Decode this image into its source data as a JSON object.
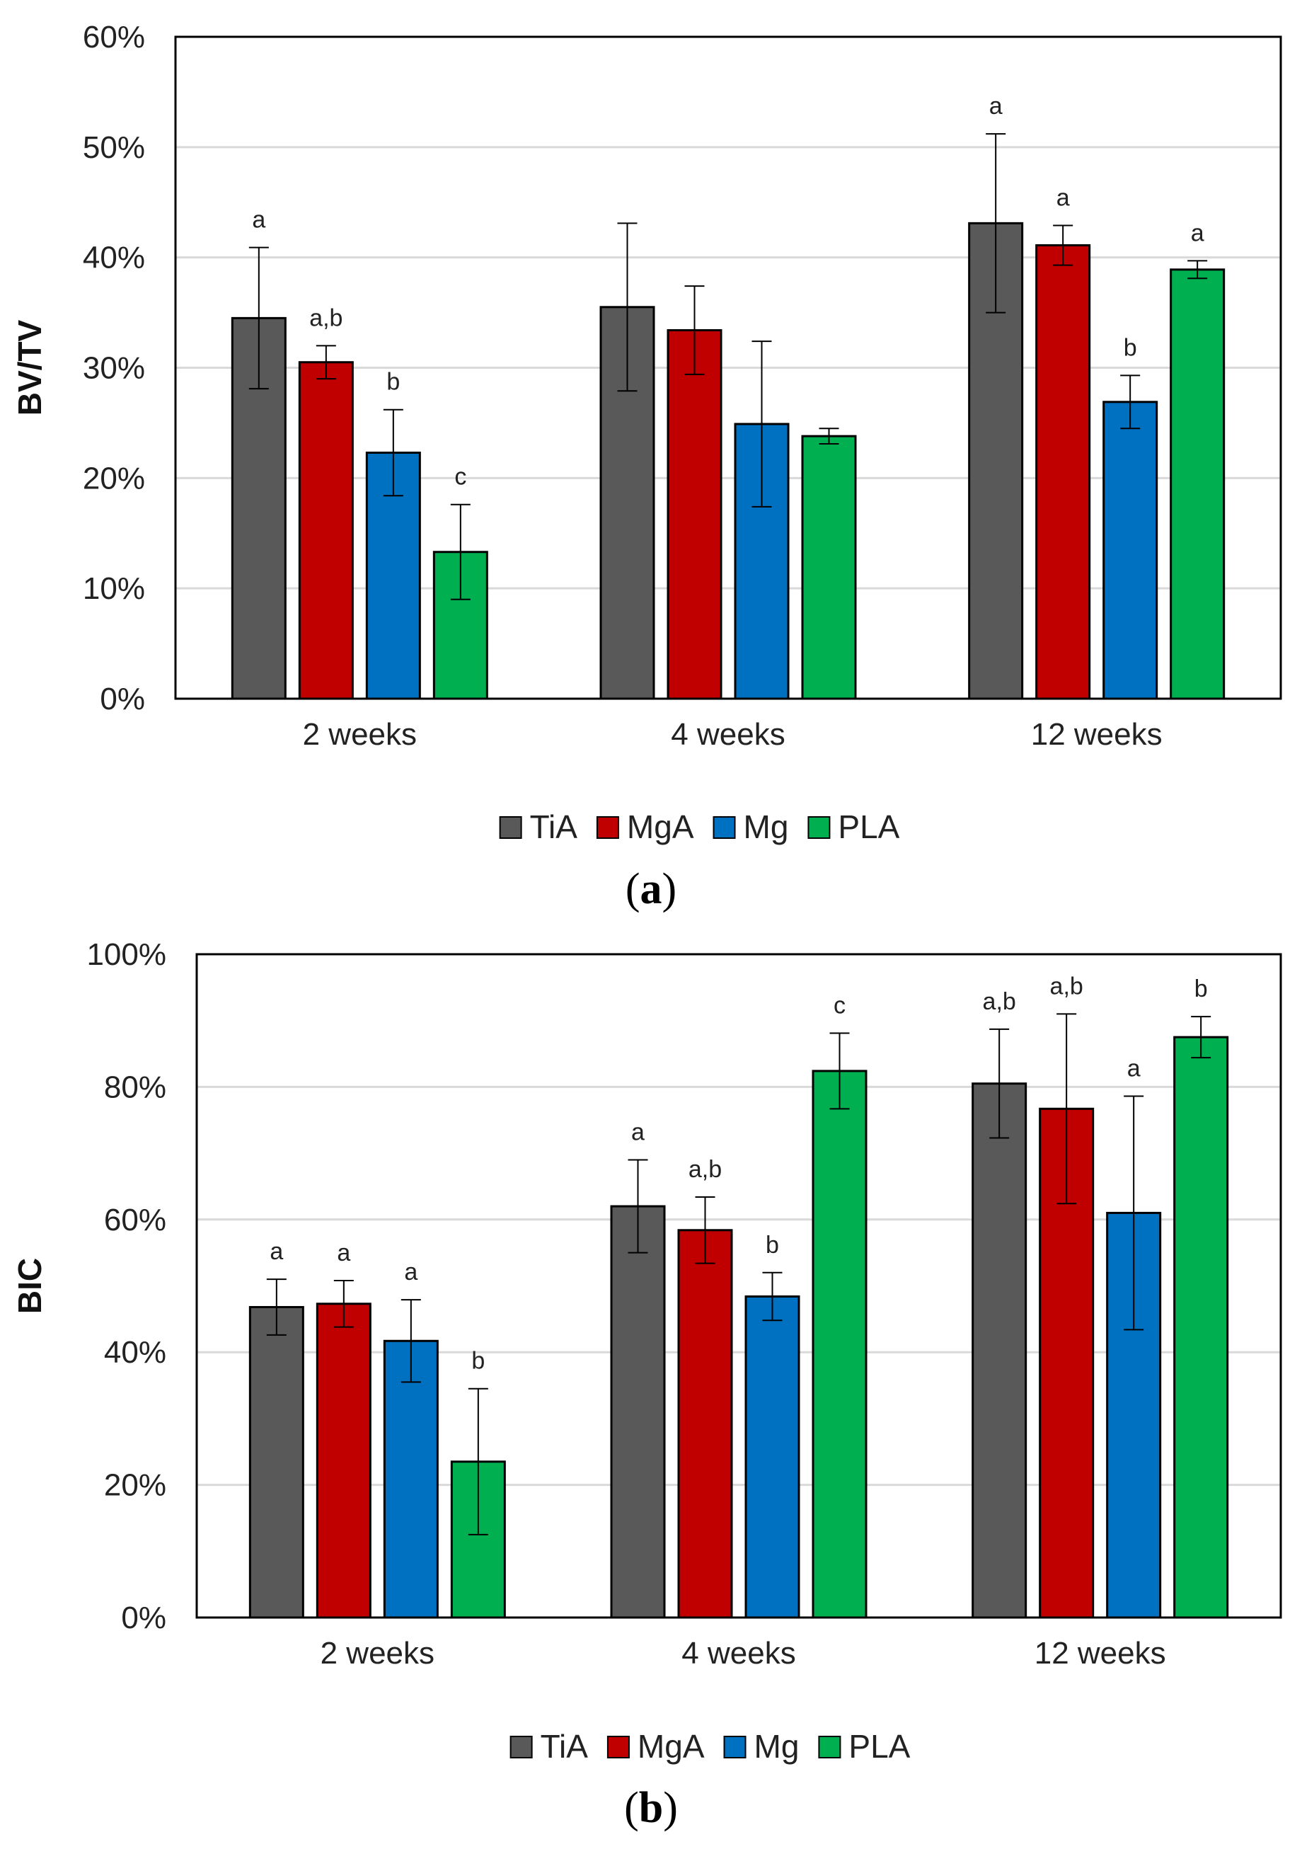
{
  "colors": {
    "TiA": "#595959",
    "MgA": "#c00000",
    "Mg": "#0070c0",
    "PLA": "#00b050",
    "grid": "#d9d9d9",
    "axis": "#000000"
  },
  "chart_data": [
    {
      "type": "bar",
      "panel_label": "a",
      "title": "",
      "xlabel": "",
      "ylabel": "BV/TV",
      "ylim": [
        0,
        60
      ],
      "yticks": [
        0,
        10,
        20,
        30,
        40,
        50,
        60
      ],
      "ytick_labels": [
        "0%",
        "10%",
        "20%",
        "30%",
        "40%",
        "50%",
        "60%"
      ],
      "grid": true,
      "legend_position": "bottom",
      "categories": [
        "2 weeks",
        "4 weeks",
        "12 weeks"
      ],
      "series": [
        {
          "name": "TiA",
          "values": [
            34.5,
            35.5,
            43.1
          ],
          "errors": [
            6.4,
            7.6,
            8.1
          ],
          "labels": [
            "a",
            "",
            "a"
          ]
        },
        {
          "name": "MgA",
          "values": [
            30.5,
            33.4,
            41.1
          ],
          "errors": [
            1.5,
            4.0,
            1.8
          ],
          "labels": [
            "a,b",
            "",
            "a"
          ]
        },
        {
          "name": "Mg",
          "values": [
            22.3,
            24.9,
            26.9
          ],
          "errors": [
            3.9,
            7.5,
            2.4
          ],
          "labels": [
            "b",
            "",
            "b"
          ]
        },
        {
          "name": "PLA",
          "values": [
            13.3,
            23.8,
            38.9
          ],
          "errors": [
            4.3,
            0.7,
            0.8
          ],
          "labels": [
            "c",
            "",
            "a"
          ]
        }
      ]
    },
    {
      "type": "bar",
      "panel_label": "b",
      "title": "",
      "xlabel": "",
      "ylabel": "BIC",
      "ylim": [
        0,
        100
      ],
      "yticks": [
        0,
        20,
        40,
        60,
        80,
        100
      ],
      "ytick_labels": [
        "0%",
        "20%",
        "40%",
        "60%",
        "80%",
        "100%"
      ],
      "grid": true,
      "legend_position": "bottom",
      "categories": [
        "2 weeks",
        "4 weeks",
        "12 weeks"
      ],
      "series": [
        {
          "name": "TiA",
          "values": [
            46.8,
            62.0,
            80.5
          ],
          "errors": [
            4.2,
            7.0,
            8.2
          ],
          "labels": [
            "a",
            "a",
            "a,b"
          ]
        },
        {
          "name": "MgA",
          "values": [
            47.3,
            58.4,
            76.7
          ],
          "errors": [
            3.5,
            5.0,
            14.3
          ],
          "labels": [
            "a",
            "a,b",
            "a,b"
          ]
        },
        {
          "name": "Mg",
          "values": [
            41.7,
            48.4,
            61.0
          ],
          "errors": [
            6.2,
            3.6,
            17.6
          ],
          "labels": [
            "a",
            "b",
            "a"
          ]
        },
        {
          "name": "PLA",
          "values": [
            23.5,
            82.4,
            87.5
          ],
          "errors": [
            11.0,
            5.7,
            3.1
          ],
          "labels": [
            "b",
            "c",
            "b"
          ]
        }
      ]
    }
  ]
}
